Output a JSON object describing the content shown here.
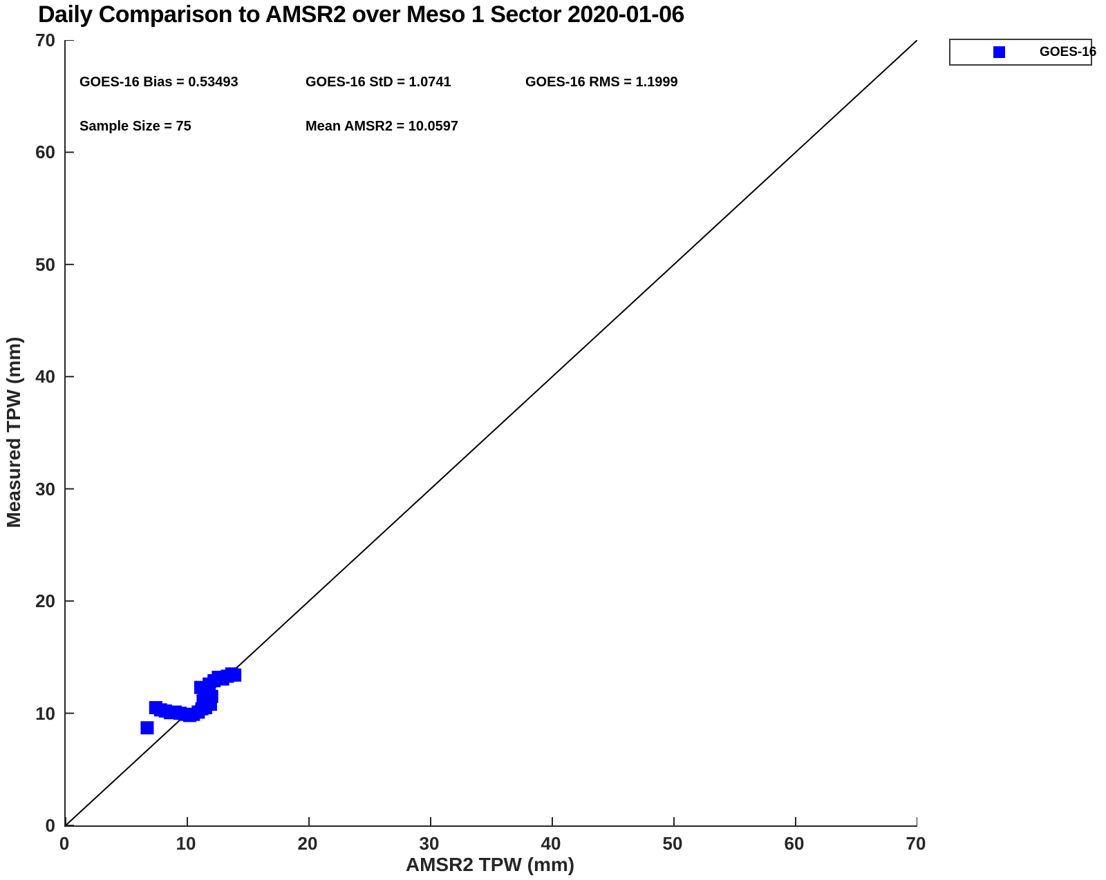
{
  "title": "Daily Comparison to AMSR2 over Meso 1 Sector 2020-01-06",
  "annotations": {
    "bias": "GOES-16 Bias = 0.53493",
    "std": "GOES-16 StD = 1.0741",
    "rms": "GOES-16 RMS = 1.1999",
    "sample_size": "Sample Size = 75",
    "mean_amsr2": "Mean AMSR2 = 10.0597"
  },
  "legend": {
    "position": "top-right",
    "entries": [
      {
        "label": "GOES-16",
        "marker": "square",
        "marker_color": "#0000ff"
      }
    ]
  },
  "chart_data": {
    "type": "scatter",
    "title": "Daily Comparison to AMSR2 over Meso 1 Sector 2020-01-06",
    "xlabel": "AMSR2 TPW (mm)",
    "ylabel": "Measured TPW (mm)",
    "xlim": [
      0,
      70
    ],
    "ylim": [
      0,
      70
    ],
    "xticks": [
      0,
      10,
      20,
      30,
      40,
      50,
      60,
      70
    ],
    "yticks": [
      0,
      10,
      20,
      30,
      40,
      50,
      60,
      70
    ],
    "grid": false,
    "axis_color": "#262626",
    "reference_line": {
      "from": [
        0,
        0
      ],
      "to": [
        70,
        70
      ],
      "color": "#000000",
      "width": 2
    },
    "series": [
      {
        "name": "GOES-16",
        "marker": "square",
        "color": "#0000ff",
        "marker_size_px": 19,
        "points": [
          [
            6.7,
            8.7
          ],
          [
            7.4,
            10.5
          ],
          [
            7.8,
            10.3
          ],
          [
            8.2,
            10.2
          ],
          [
            8.6,
            10.05
          ],
          [
            9.0,
            10.1
          ],
          [
            9.4,
            10.0
          ],
          [
            9.8,
            9.9
          ],
          [
            10.2,
            9.8
          ],
          [
            10.5,
            9.9
          ],
          [
            10.9,
            10.1
          ],
          [
            11.2,
            10.4
          ],
          [
            11.5,
            10.5
          ],
          [
            11.9,
            10.8
          ],
          [
            12.0,
            11.5
          ],
          [
            11.3,
            11.1
          ],
          [
            11.1,
            12.3
          ],
          [
            11.4,
            11.9
          ],
          [
            11.8,
            12.6
          ],
          [
            12.2,
            12.9
          ],
          [
            12.55,
            13.2
          ],
          [
            12.9,
            13.05
          ],
          [
            13.3,
            13.3
          ],
          [
            13.65,
            13.5
          ],
          [
            13.9,
            13.4
          ]
        ]
      }
    ],
    "stats": {
      "bias": 0.53493,
      "std": 1.0741,
      "rms": 1.1999,
      "sample_size": 75,
      "mean_amsr2": 10.0597
    }
  }
}
